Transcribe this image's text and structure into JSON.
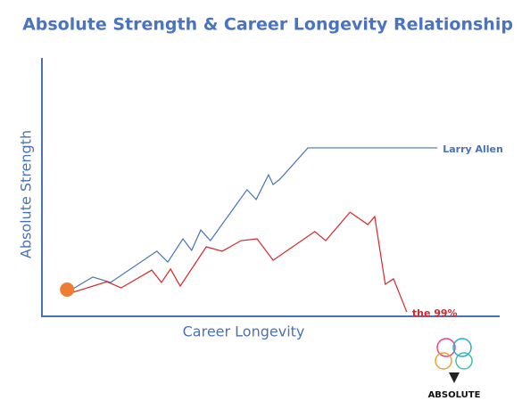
{
  "chart_data": {
    "type": "line",
    "title": "Absolute Strength & Career Longevity Relationship",
    "xlabel": "Career Longevity",
    "ylabel": "Absolute Strength",
    "xlim": [
      0,
      100
    ],
    "ylim": [
      0,
      100
    ],
    "start_marker_color": "#ed7d31",
    "series": [
      {
        "name": "Larry Allen",
        "color": "#4a72b8",
        "x": [
          5.5,
          11.1,
          15.0,
          25.1,
          27.5,
          30.8,
          32.7,
          34.7,
          36.8,
          44.8,
          46.8,
          49.5,
          50.5,
          52.0,
          58.1,
          86.4
        ],
        "values": [
          9.3,
          15.2,
          13.1,
          25.2,
          21.0,
          30.0,
          25.5,
          33.4,
          29.3,
          49.0,
          45.2,
          54.8,
          51.0,
          53.1,
          65.2,
          65.2
        ]
      },
      {
        "name": "the 99%",
        "color": "#d9262a",
        "x": [
          5.5,
          14.2,
          17.3,
          24.0,
          26.1,
          28.1,
          30.2,
          35.9,
          39.4,
          43.5,
          47.0,
          50.5,
          59.6,
          62.0,
          67.3,
          71.2,
          72.7,
          75.0,
          76.8,
          79.7
        ],
        "values": [
          8.6,
          13.4,
          11.0,
          17.9,
          13.1,
          18.3,
          11.7,
          26.9,
          25.2,
          29.3,
          30.0,
          21.7,
          32.8,
          29.3,
          40.3,
          35.5,
          38.6,
          12.4,
          14.5,
          1.7
        ]
      }
    ]
  },
  "logo_text": "ABSOLUTE"
}
